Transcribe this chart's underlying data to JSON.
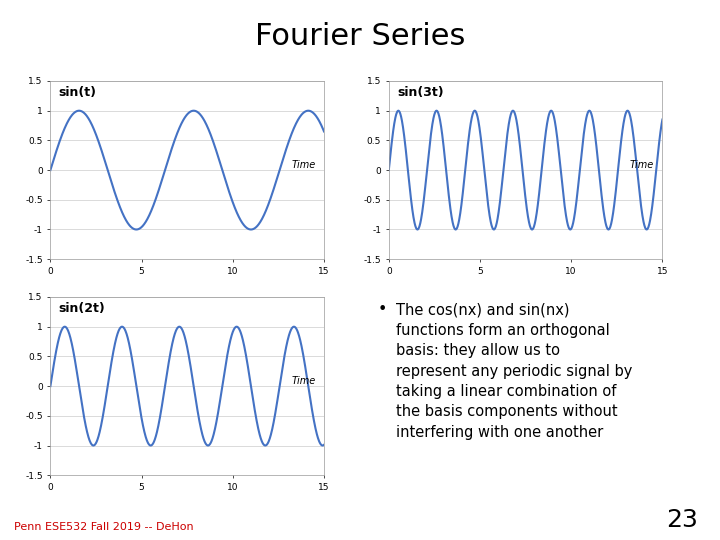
{
  "title": "Fourier Series",
  "title_fontsize": 22,
  "plot_color": "#4472C4",
  "plot_linewidth": 1.5,
  "t_start": 0,
  "t_end": 15,
  "ylim": [
    -1.5,
    1.5
  ],
  "yticks": [
    -1.5,
    -1,
    -0.5,
    0,
    0.5,
    1,
    1.5
  ],
  "xticks": [
    0,
    5,
    10,
    15
  ],
  "xlabel": "Time",
  "plots": [
    {
      "label": "sin(t)",
      "freq": 1
    },
    {
      "label": "sin(3t)",
      "freq": 3
    },
    {
      "label": "sin(2t)",
      "freq": 2
    }
  ],
  "bullet_lines": [
    "The cos(nx) and sin(nx)",
    "functions form an orthogonal",
    "basis: they allow us to",
    "represent any periodic signal by",
    "taking a linear combination of",
    "the basis components without",
    "interfering with one another"
  ],
  "bullet_fontsize": 10.5,
  "footer_text": "Penn ESE532 Fall 2019 -- DeHon",
  "footer_fontsize": 8,
  "footer_color": "#CC0000",
  "page_number": "23",
  "page_number_fontsize": 18,
  "background_color": "#FFFFFF",
  "axes_background": "#FFFFFF",
  "grid_color": "#CCCCCC",
  "tick_fontsize": 6.5,
  "label_fontsize": 9,
  "border_color": "#AAAAAA",
  "time_label_fontsize": 7
}
